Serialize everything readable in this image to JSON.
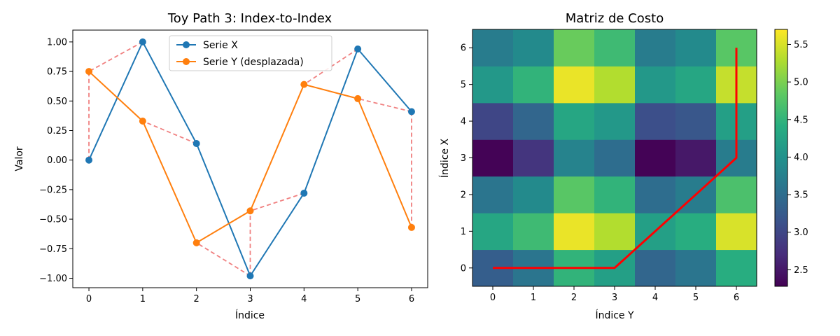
{
  "chart_data": [
    {
      "type": "line",
      "title": "Toy Path 3: Index-to-Index",
      "xlabel": "Índice",
      "ylabel": "Valor",
      "xlim": [
        -0.3,
        6.3
      ],
      "ylim": [
        -1.08,
        1.1
      ],
      "xticks": [
        "0",
        "1",
        "2",
        "3",
        "4",
        "5",
        "6"
      ],
      "yticks": [
        "1.00",
        "0.75",
        "0.50",
        "0.25",
        "0.00",
        "−0.25",
        "−0.50",
        "−0.75",
        "−1.00"
      ],
      "ytick_values": [
        1.0,
        0.75,
        0.5,
        0.25,
        0.0,
        -0.25,
        -0.5,
        -0.75,
        -1.0
      ],
      "legend_position": "top-center",
      "series": [
        {
          "name": "Serie X",
          "color": "#1f77b4",
          "x": [
            0,
            1,
            2,
            3,
            4,
            5,
            6
          ],
          "y": [
            0.0,
            1.0,
            0.14,
            -0.98,
            -0.28,
            0.94,
            0.41
          ]
        },
        {
          "name": "Serie Y (desplazada)",
          "color": "#ff7f0e",
          "x": [
            0,
            1,
            2,
            3,
            4,
            5,
            6
          ],
          "y": [
            0.75,
            0.33,
            -0.7,
            -0.43,
            0.64,
            0.52,
            -0.57
          ]
        }
      ],
      "alignment_color": "#f08080",
      "alignment_links": [
        [
          0,
          0
        ],
        [
          1,
          0
        ],
        [
          2,
          1
        ],
        [
          3,
          2
        ],
        [
          3,
          3
        ],
        [
          4,
          3
        ],
        [
          5,
          4
        ],
        [
          6,
          5
        ],
        [
          6,
          6
        ]
      ]
    },
    {
      "type": "heatmap",
      "title": "Matriz de Costo",
      "xlabel": "Índice Y",
      "ylabel": "Índice X",
      "xticks": [
        "0",
        "1",
        "2",
        "3",
        "4",
        "5",
        "6"
      ],
      "yticks": [
        "0",
        "1",
        "2",
        "3",
        "4",
        "5",
        "6"
      ],
      "colormap": "viridis",
      "vmin": 2.28,
      "vmax": 5.7,
      "colorbar_ticks": [
        "2.5",
        "3.0",
        "3.5",
        "4.0",
        "4.5",
        "5.0",
        "5.5"
      ],
      "colorbar_tick_values": [
        2.5,
        3.0,
        3.5,
        4.0,
        4.5,
        5.0,
        5.5
      ],
      "rows": [
        [
          3.3,
          3.6,
          4.5,
          4.2,
          3.4,
          3.6,
          4.4
        ],
        [
          4.3,
          4.6,
          5.6,
          5.3,
          4.2,
          4.4,
          5.5
        ],
        [
          3.6,
          3.9,
          4.8,
          4.5,
          3.5,
          3.7,
          4.7
        ],
        [
          2.3,
          2.8,
          3.8,
          3.5,
          2.3,
          2.5,
          3.7
        ],
        [
          3.0,
          3.4,
          4.3,
          4.1,
          3.1,
          3.2,
          4.2
        ],
        [
          4.1,
          4.5,
          5.6,
          5.3,
          4.1,
          4.3,
          5.4
        ],
        [
          3.7,
          3.9,
          4.9,
          4.6,
          3.7,
          3.9,
          4.8
        ]
      ],
      "path_color": "#ff0000",
      "path": [
        [
          0,
          0
        ],
        [
          0,
          1
        ],
        [
          0,
          2
        ],
        [
          0,
          3
        ],
        [
          1,
          4
        ],
        [
          2,
          5
        ],
        [
          3,
          6
        ],
        [
          4,
          6
        ],
        [
          5,
          6
        ],
        [
          6,
          6
        ]
      ]
    }
  ]
}
